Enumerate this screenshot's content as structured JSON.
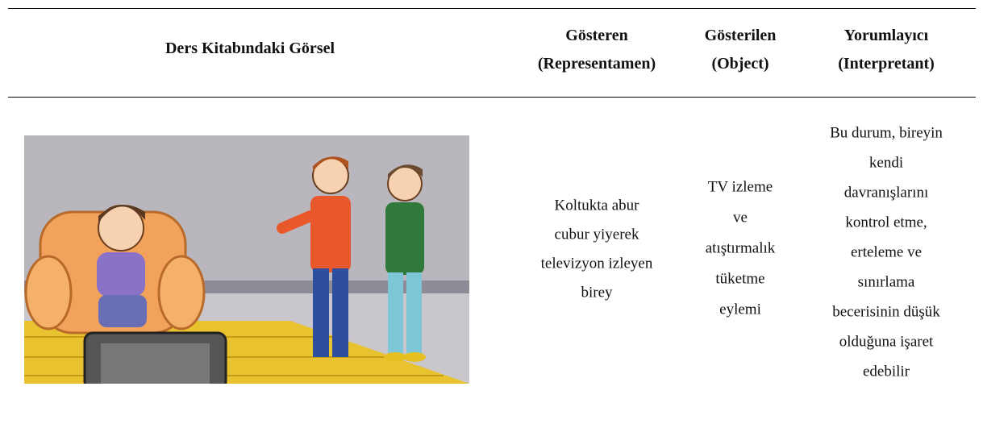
{
  "table": {
    "headers": [
      [
        "Ders Kitabındaki Görsel"
      ],
      [
        "Gösteren",
        "(Representamen)"
      ],
      [
        "Gösterilen",
        "(Object)"
      ],
      [
        "Yorumlayıcı",
        "(Interpretant)"
      ]
    ],
    "rows": [
      [
        [
          "Koltukta abur",
          "cubur yiyerek",
          "televizyon izleyen",
          "birey"
        ],
        [
          "TV izleme",
          "ve",
          "atıştırmalık",
          "tüketme",
          "eylemi"
        ],
        [
          "Bu durum, bireyin",
          "kendi",
          "davranışlarını",
          "kontrol etme,",
          "erteleme ve",
          "sınırlama",
          "becerisinin düşük",
          "olduğuna işaret",
          "edebilir"
        ]
      ]
    ]
  }
}
